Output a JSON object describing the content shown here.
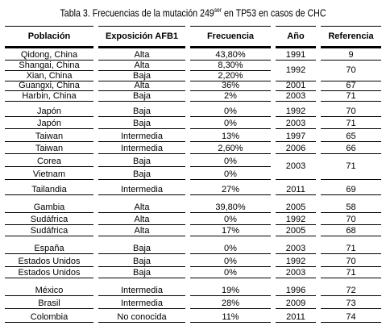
{
  "title": {
    "before": "Tabla 3. Frecuencias de la mutación 249",
    "sup": "ser",
    "after": " en TP53 en casos de CHC"
  },
  "table": {
    "header": [
      "Población",
      "Exposición AFB1",
      "Frecuencia",
      "Año",
      "Referencia"
    ],
    "rows": [
      [
        "Qidong, China",
        "Alta",
        "43,80%",
        "1991",
        "9"
      ],
      [
        "Shangai, China",
        "Alta",
        "8,30%",
        "1992",
        "70"
      ],
      [
        "Xian, China",
        "Baja",
        "2,20%"
      ],
      [
        "Guangxi, China",
        "Alta",
        "36%",
        "2001",
        "67"
      ],
      [
        "Harbin, China",
        "Baja",
        "2%",
        "2003",
        "71"
      ],
      [
        "Japón",
        "Baja",
        "0%",
        "1992",
        "70"
      ],
      [
        "Japón",
        "Baja",
        "0%",
        "2003",
        "71"
      ],
      [
        "Taiwan",
        "Intermedia",
        "13%",
        "1997",
        "65"
      ],
      [
        "Taiwan",
        "Intermedia",
        "2,60%",
        "2006",
        "66"
      ],
      [
        "Corea",
        "Baja",
        "0%",
        "2003",
        "71"
      ],
      [
        "Vietnam",
        "Baja",
        "0%"
      ],
      [
        "Tailandia",
        "Intermedia",
        "27%",
        "2011",
        "69"
      ],
      [
        "Gambia",
        "Alta",
        "39,80%",
        "2005",
        "58"
      ],
      [
        "Sudáfrica",
        "Alta",
        "0%",
        "1992",
        "70"
      ],
      [
        "Sudáfrica",
        "Alta",
        "17%",
        "2005",
        "68"
      ],
      [
        "España",
        "Baja",
        "0%",
        "2003",
        "71"
      ],
      [
        "Estados Unidos",
        "Baja",
        "0%",
        "1992",
        "70"
      ],
      [
        "Estados Unidos",
        "Baja",
        "0%",
        "2003",
        "71"
      ],
      [
        "México",
        "Intermedia",
        "19%",
        "1996",
        "72"
      ],
      [
        "Brasil",
        "Intermedia",
        "28%",
        "2009",
        "73"
      ],
      [
        "Colombia",
        "No conocida",
        "11%",
        "2011",
        "74"
      ]
    ]
  }
}
